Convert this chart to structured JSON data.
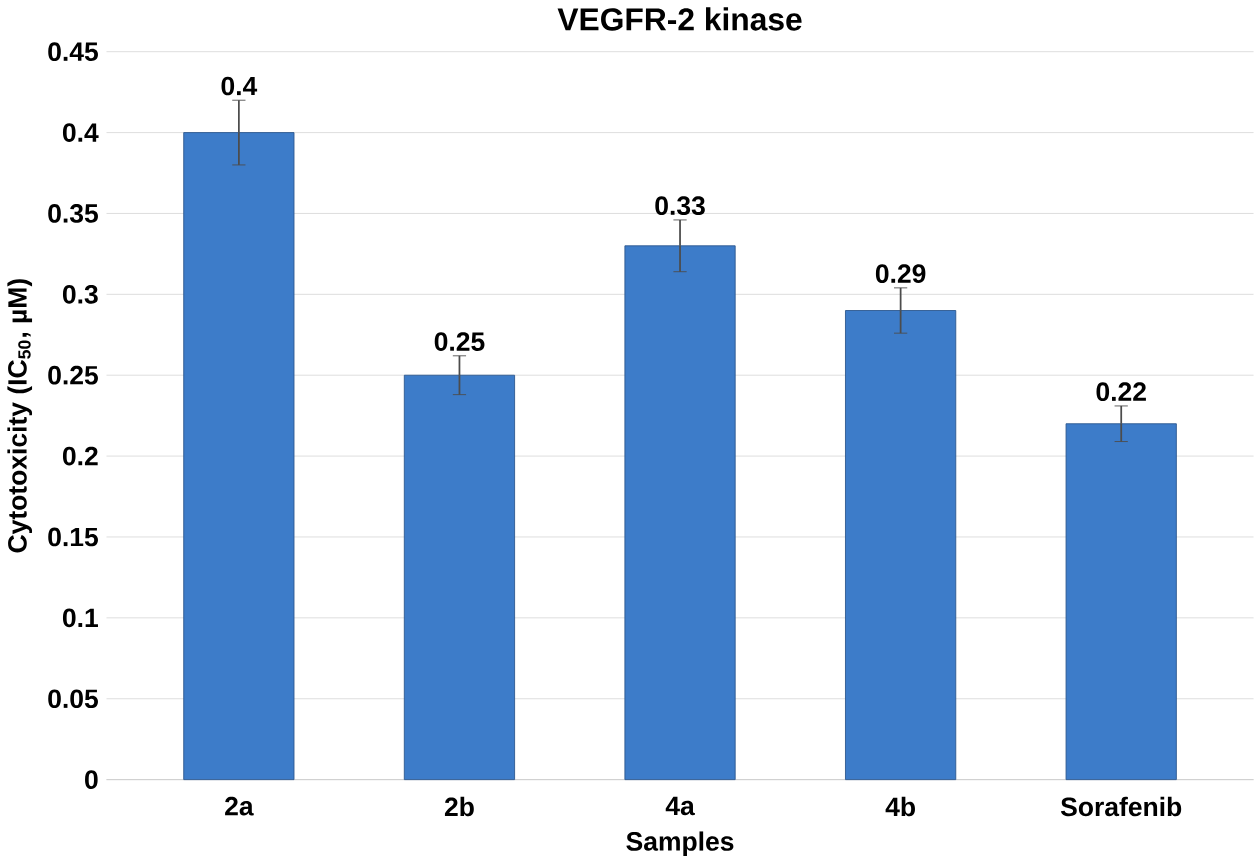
{
  "chart_data": {
    "type": "bar",
    "title": "VEGFR-2 kinase",
    "xlabel": "Samples",
    "ylabel": "Cytotoxicity (IC$_{50}$, µM)",
    "categories": [
      "2a",
      "2b",
      "4a",
      "4b",
      "Sorafenib"
    ],
    "values": [
      0.4,
      0.25,
      0.33,
      0.29,
      0.22
    ],
    "errors": [
      0.02,
      0.012,
      0.016,
      0.014,
      0.011
    ],
    "color": "#3d7cc9",
    "ylim": [
      0,
      0.45
    ],
    "yticks": [
      0,
      0.05,
      0.1,
      0.15,
      0.2,
      0.25,
      0.3,
      0.35,
      0.4,
      0.45
    ],
    "grid": "y",
    "data_labels": true
  }
}
